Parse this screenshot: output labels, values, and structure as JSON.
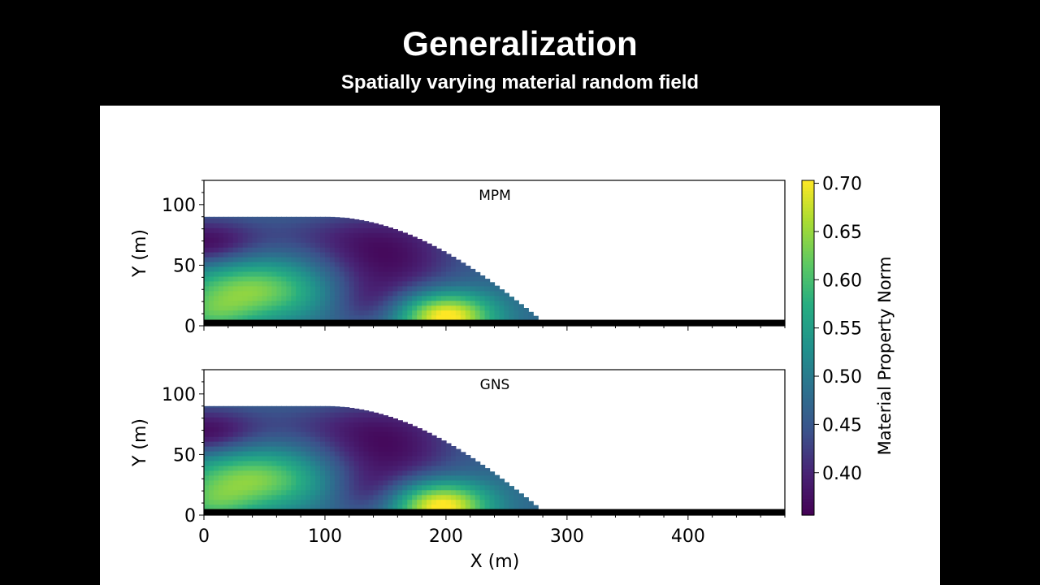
{
  "slide": {
    "title": "Generalization",
    "subtitle": "Spatially varying material random field"
  },
  "chart_data": {
    "type": "heatmap",
    "subplots": [
      {
        "label": "MPM"
      },
      {
        "label": "GNS"
      }
    ],
    "xlabel": "X (m)",
    "ylabel": "Y (m)",
    "xlim": [
      0,
      480
    ],
    "ylim": [
      0,
      120
    ],
    "xticks": [
      "0",
      "100",
      "200",
      "300",
      "400"
    ],
    "yticks": [
      "0",
      "50",
      "100"
    ],
    "colorbar": {
      "label": "Material Property Norm",
      "colormap": "viridis",
      "range": [
        0.356,
        0.703
      ],
      "ticks": [
        "0.40",
        "0.45",
        "0.50",
        "0.55",
        "0.60",
        "0.65",
        "0.70"
      ]
    },
    "grid": false
  }
}
